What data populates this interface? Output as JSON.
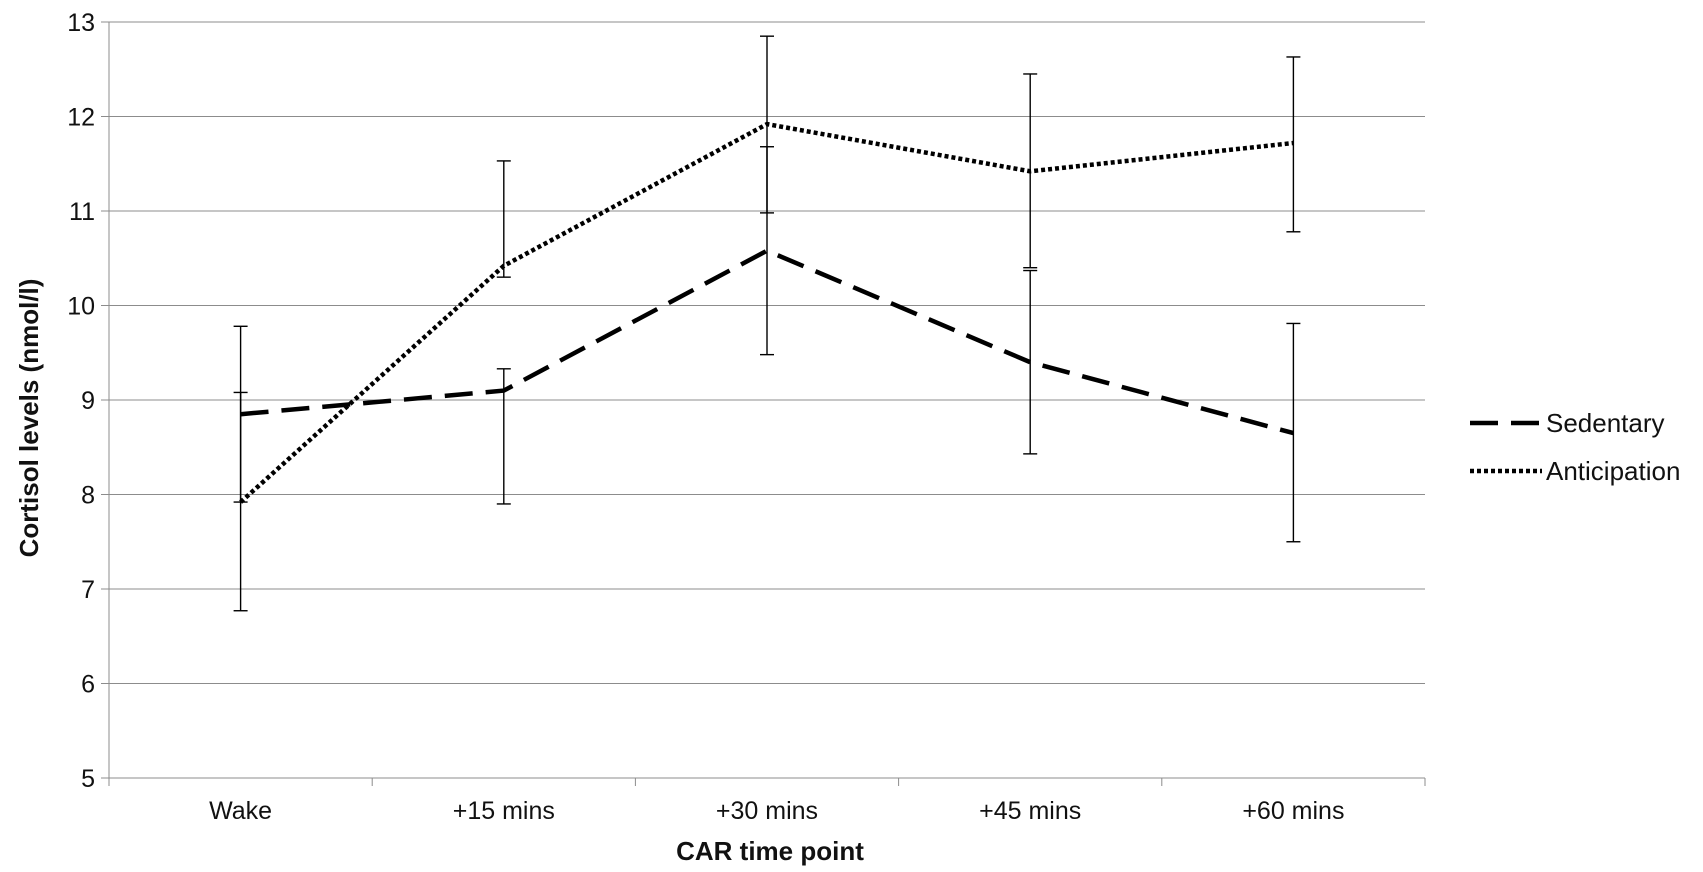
{
  "chart_data": {
    "type": "line",
    "xlabel": "CAR time point",
    "ylabel": "Cortisol levels (nmol/l)",
    "categories": [
      "Wake",
      "+15 mins",
      "+30 mins",
      "+45 mins",
      "+60 mins"
    ],
    "ylim": [
      5,
      13
    ],
    "yticks": [
      5,
      6,
      7,
      8,
      9,
      10,
      11,
      12,
      13
    ],
    "grid": true,
    "legend_position": "right",
    "series": [
      {
        "name": "Sedentary",
        "style": "dashed",
        "color": "#000000",
        "values": [
          8.85,
          9.1,
          10.58,
          9.4,
          8.65
        ],
        "error_low": [
          7.92,
          7.9,
          9.48,
          8.43,
          7.5
        ],
        "error_high": [
          9.08,
          9.33,
          11.68,
          10.37,
          9.81
        ]
      },
      {
        "name": "Anticipation",
        "style": "dotted",
        "color": "#000000",
        "values": [
          7.92,
          10.42,
          11.92,
          11.42,
          11.72
        ],
        "error_low": [
          6.77,
          10.3,
          10.98,
          10.4,
          10.78
        ],
        "error_high": [
          9.78,
          11.53,
          12.85,
          12.45,
          12.63
        ]
      }
    ]
  }
}
